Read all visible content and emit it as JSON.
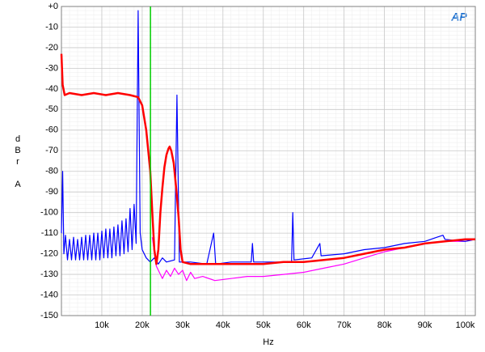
{
  "chart_data": {
    "type": "line",
    "logo": "AP",
    "xlabel": "Hz",
    "ylabel": "dBr",
    "ylabel_unit": "A",
    "xlim": [
      0,
      102500
    ],
    "ylim": [
      -150,
      0
    ],
    "xticks": [
      {
        "value": 10000,
        "label": "10k"
      },
      {
        "value": 20000,
        "label": "20k"
      },
      {
        "value": 30000,
        "label": "30k"
      },
      {
        "value": 40000,
        "label": "40k"
      },
      {
        "value": 50000,
        "label": "50k"
      },
      {
        "value": 60000,
        "label": "60k"
      },
      {
        "value": 70000,
        "label": "70k"
      },
      {
        "value": 80000,
        "label": "80k"
      },
      {
        "value": 90000,
        "label": "90k"
      },
      {
        "value": 100000,
        "label": "100k"
      }
    ],
    "yticks": [
      {
        "value": 0,
        "label": "+0"
      },
      -10,
      -20,
      -30,
      -40,
      -50,
      -60,
      -70,
      -80,
      -90,
      -100,
      -110,
      -120,
      -130,
      -140,
      -150
    ],
    "grid": true,
    "markers": [
      {
        "x": 22050,
        "color": "#00cc00"
      }
    ],
    "series": [
      {
        "color": "#ff00ff",
        "x": [
          22500,
          23500,
          24500,
          25000,
          26000,
          27000,
          28000,
          29000,
          30000,
          31000,
          32000,
          33000,
          35000,
          38000,
          42000,
          46000,
          50000,
          55000,
          60000,
          65000,
          70000,
          75000,
          80000,
          85000,
          90000,
          95000,
          100000,
          102500
        ],
        "values": [
          -112,
          -126,
          -130,
          -132,
          -128,
          -131,
          -127,
          -130,
          -128,
          -133,
          -129,
          -132,
          -131,
          -133,
          -132,
          -131,
          -131,
          -130,
          -129,
          -127,
          -125,
          -122,
          -119,
          -117,
          -115,
          -114,
          -114,
          -113
        ]
      },
      {
        "color": "#0000ff",
        "x": [
          0,
          300,
          600,
          1000,
          1500,
          2000,
          2500,
          3000,
          3500,
          4000,
          4500,
          5000,
          5500,
          6000,
          6500,
          7000,
          7500,
          8000,
          8500,
          9000,
          9500,
          10000,
          10500,
          11000,
          11500,
          12000,
          12500,
          13000,
          13500,
          14000,
          14500,
          15000,
          15500,
          16000,
          16500,
          17000,
          17500,
          18000,
          18500,
          19000,
          19500,
          20000,
          21000,
          22000,
          23000,
          24000,
          25000,
          26000,
          28000,
          28600,
          29200,
          32000,
          36000,
          37700,
          38200,
          42000,
          47000,
          47300,
          47600,
          52000,
          57000,
          57300,
          57600,
          62000,
          64000,
          64300,
          70000,
          75000,
          80000,
          85000,
          90000,
          93000,
          94500,
          95000,
          100000,
          102500
        ],
        "values": [
          -110,
          -80,
          -120,
          -111,
          -123,
          -113,
          -123,
          -112,
          -123,
          -113,
          -123,
          -112,
          -123,
          -111,
          -123,
          -111,
          -123,
          -110,
          -123,
          -110,
          -123,
          -109,
          -122,
          -108,
          -122,
          -108,
          -122,
          -107,
          -121,
          -106,
          -121,
          -104,
          -120,
          -103,
          -119,
          -98,
          -118,
          -96,
          -115,
          -2,
          -110,
          -118,
          -122,
          -124,
          -122,
          -125,
          -122,
          -124,
          -123,
          -43,
          -124,
          -124,
          -125,
          -110,
          -125,
          -124,
          -124,
          -115,
          -124,
          -124,
          -124,
          -100,
          -123,
          -122,
          -115,
          -121,
          -120,
          -118,
          -117,
          -115,
          -114,
          -112,
          -111,
          -113,
          -114,
          -113
        ]
      },
      {
        "color": "#ff0000",
        "x": [
          0,
          300,
          800,
          2000,
          5000,
          8000,
          11000,
          14000,
          17000,
          19000,
          20000,
          21000,
          22000,
          22500,
          23000,
          23500,
          24000,
          24500,
          25000,
          25500,
          26000,
          26500,
          26800,
          27200,
          27800,
          28500,
          29000,
          29500,
          30000,
          32000,
          36000,
          40000,
          45000,
          50000,
          55000,
          60000,
          65000,
          70000,
          75000,
          80000,
          85000,
          90000,
          95000,
          100000,
          102500
        ],
        "values": [
          -23,
          -38,
          -43,
          -42,
          -43,
          -42,
          -43,
          -42,
          -43,
          -44,
          -48,
          -60,
          -80,
          -100,
          -118,
          -125,
          -118,
          -100,
          -88,
          -78,
          -72,
          -69,
          -68,
          -70,
          -76,
          -90,
          -102,
          -118,
          -124,
          -125,
          -125,
          -125,
          -125,
          -125,
          -124,
          -124,
          -123,
          -122,
          -120,
          -118,
          -117,
          -115,
          -114,
          -113,
          -113
        ]
      }
    ]
  }
}
